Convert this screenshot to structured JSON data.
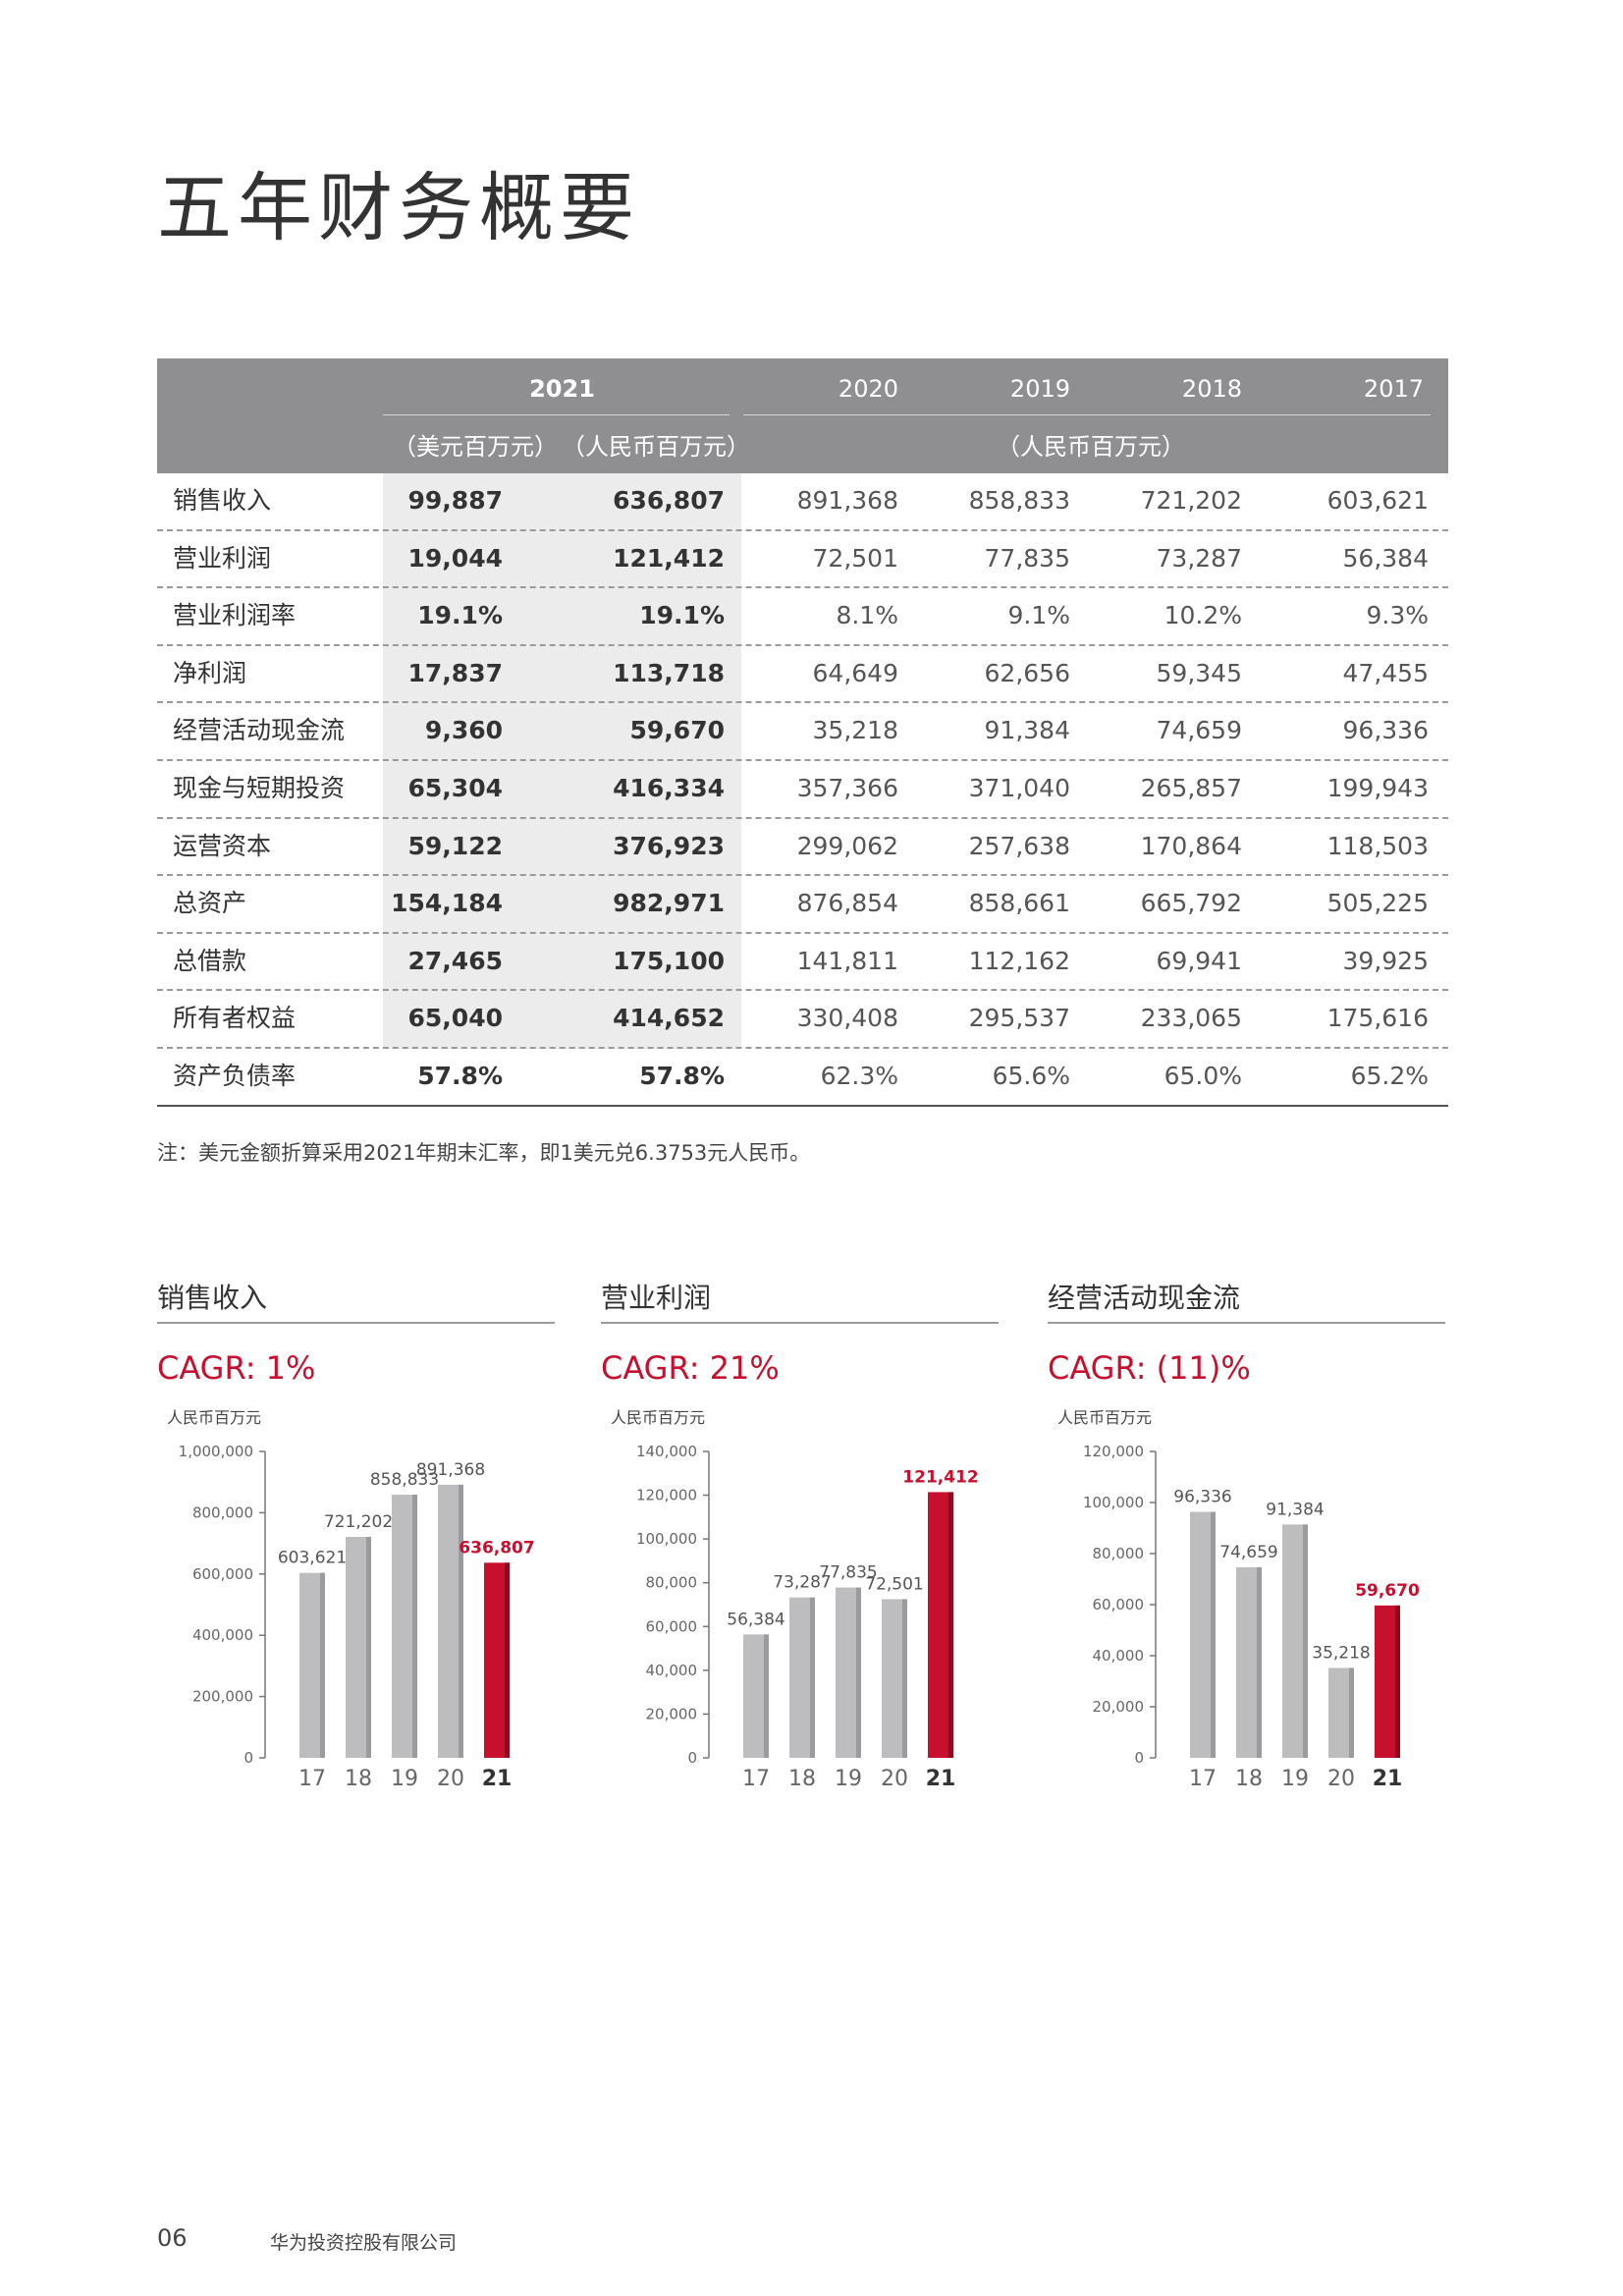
{
  "page_title": "五年财务概要",
  "table": {
    "year_2021": "2021",
    "years_prev": [
      "2020",
      "2019",
      "2018",
      "2017"
    ],
    "unit_usd": "（美元百万元）",
    "unit_rmb": "（人民币百万元）",
    "unit_prev": "（人民币百万元）",
    "rows": [
      {
        "label": "销售收入",
        "usd": "99,887",
        "rmb": "636,807",
        "v2020": "891,368",
        "v2019": "858,833",
        "v2018": "721,202",
        "v2017": "603,621"
      },
      {
        "label": "营业利润",
        "usd": "19,044",
        "rmb": "121,412",
        "v2020": "72,501",
        "v2019": "77,835",
        "v2018": "73,287",
        "v2017": "56,384"
      },
      {
        "label": "营业利润率",
        "usd": "19.1%",
        "rmb": "19.1%",
        "v2020": "8.1%",
        "v2019": "9.1%",
        "v2018": "10.2%",
        "v2017": "9.3%"
      },
      {
        "label": "净利润",
        "usd": "17,837",
        "rmb": "113,718",
        "v2020": "64,649",
        "v2019": "62,656",
        "v2018": "59,345",
        "v2017": "47,455"
      },
      {
        "label": "经营活动现金流",
        "usd": "9,360",
        "rmb": "59,670",
        "v2020": "35,218",
        "v2019": "91,384",
        "v2018": "74,659",
        "v2017": "96,336"
      },
      {
        "label": "现金与短期投资",
        "usd": "65,304",
        "rmb": "416,334",
        "v2020": "357,366",
        "v2019": "371,040",
        "v2018": "265,857",
        "v2017": "199,943"
      },
      {
        "label": "运营资本",
        "usd": "59,122",
        "rmb": "376,923",
        "v2020": "299,062",
        "v2019": "257,638",
        "v2018": "170,864",
        "v2017": "118,503"
      },
      {
        "label": "总资产",
        "usd": "154,184",
        "rmb": "982,971",
        "v2020": "876,854",
        "v2019": "858,661",
        "v2018": "665,792",
        "v2017": "505,225"
      },
      {
        "label": "总借款",
        "usd": "27,465",
        "rmb": "175,100",
        "v2020": "141,811",
        "v2019": "112,162",
        "v2018": "69,941",
        "v2017": "39,925"
      },
      {
        "label": "所有者权益",
        "usd": "65,040",
        "rmb": "414,652",
        "v2020": "330,408",
        "v2019": "295,537",
        "v2018": "233,065",
        "v2017": "175,616"
      },
      {
        "label": "资产负债率",
        "usd": "57.8%",
        "rmb": "57.8%",
        "v2020": "62.3%",
        "v2019": "65.6%",
        "v2018": "65.0%",
        "v2017": "65.2%"
      }
    ]
  },
  "note": "注：美元金额折算采用2021年期末汇率，即1美元兑6.3753元人民币。",
  "colors": {
    "bar_grey": "#bdbdc0",
    "bar_grey_side": "#9b9b9e",
    "bar_red": "#c8102e",
    "bar_red_side": "#8e0a1f",
    "header_grey": "#8f8f92"
  },
  "charts": [
    {
      "title": "销售收入",
      "cagr": "CAGR: 1%",
      "unit": "人民币百万元"
    },
    {
      "title": "营业利润",
      "cagr": "CAGR: 21%",
      "unit": "人民币百万元"
    },
    {
      "title": "经营活动现金流",
      "cagr": "CAGR: (11)%",
      "unit": "人民币百万元"
    }
  ],
  "chart_data": [
    {
      "type": "bar",
      "title": "销售收入",
      "ylabel": "人民币百万元",
      "categories": [
        "17",
        "18",
        "19",
        "20",
        "21"
      ],
      "values": [
        603621,
        721202,
        858833,
        891368,
        636807
      ],
      "labels": [
        "603,621",
        "721,202",
        "858,833",
        "891,368",
        "636,807"
      ],
      "ylim": [
        0,
        1000000
      ],
      "yticks": [
        0,
        200000,
        400000,
        600000,
        800000,
        1000000
      ],
      "ytick_labels": [
        "0",
        "200,000",
        "400,000",
        "600,000",
        "800,000",
        "1,000,000"
      ],
      "highlight_index": 4,
      "grid": false
    },
    {
      "type": "bar",
      "title": "营业利润",
      "ylabel": "人民币百万元",
      "categories": [
        "17",
        "18",
        "19",
        "20",
        "21"
      ],
      "values": [
        56384,
        73287,
        77835,
        72501,
        121412
      ],
      "labels": [
        "56,384",
        "73,287",
        "77,835",
        "72,501",
        "121,412"
      ],
      "ylim": [
        0,
        140000
      ],
      "yticks": [
        0,
        20000,
        40000,
        60000,
        80000,
        100000,
        120000,
        140000
      ],
      "ytick_labels": [
        "0",
        "20,000",
        "40,000",
        "60,000",
        "80,000",
        "100,000",
        "120,000",
        "140,000"
      ],
      "highlight_index": 4,
      "grid": false
    },
    {
      "type": "bar",
      "title": "经营活动现金流",
      "ylabel": "人民币百万元",
      "categories": [
        "17",
        "18",
        "19",
        "20",
        "21"
      ],
      "values": [
        96336,
        74659,
        91384,
        35218,
        59670
      ],
      "labels": [
        "96,336",
        "74,659",
        "91,384",
        "35,218",
        "59,670"
      ],
      "ylim": [
        0,
        120000
      ],
      "yticks": [
        0,
        20000,
        40000,
        60000,
        80000,
        100000,
        120000
      ],
      "ytick_labels": [
        "0",
        "20,000",
        "40,000",
        "60,000",
        "80,000",
        "100,000",
        "120,000"
      ],
      "highlight_index": 4,
      "grid": false
    }
  ],
  "footer": {
    "page_number": "06",
    "company": "华为投资控股有限公司"
  }
}
